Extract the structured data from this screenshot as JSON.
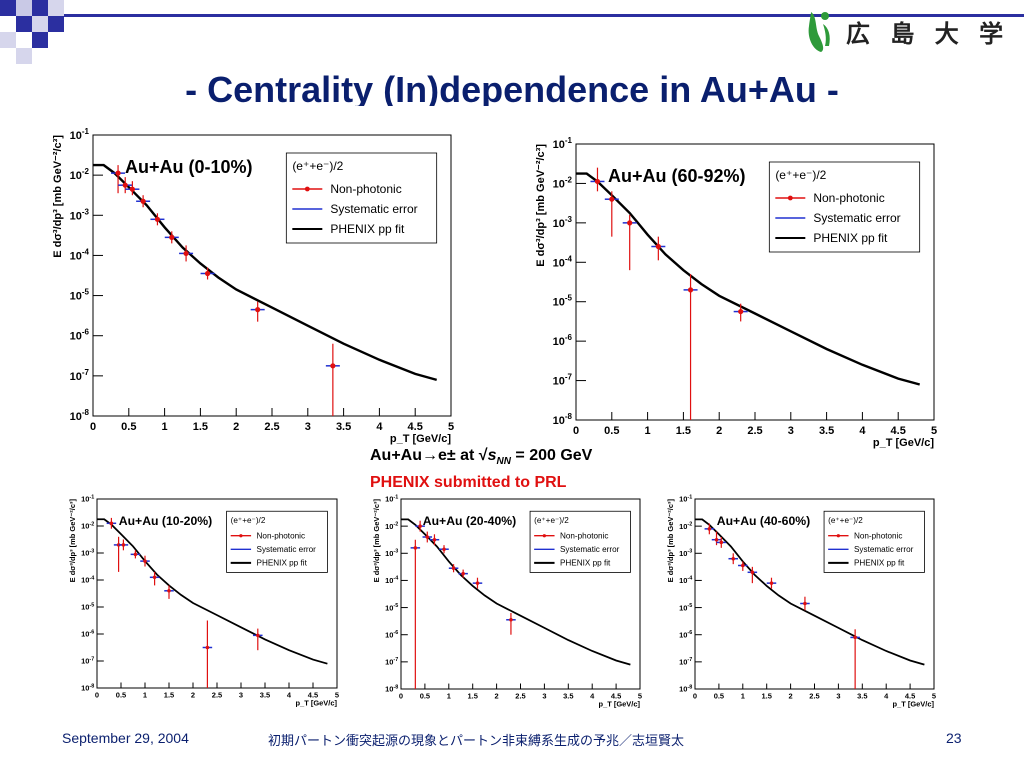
{
  "slide": {
    "title": "- Centrality (In)dependence in Au+Au -",
    "logo_text": "広 島 大 学",
    "center_line1_prefix": "Au+Au",
    "center_line1_arrow": "→",
    "center_line1_particle": "e±",
    "center_line1_at": " at √",
    "center_line1_s": "s",
    "center_line1_sub": "NN",
    "center_line1_suffix": " = 200 GeV",
    "center_line2": "PHENIX submitted to PRL",
    "footer_date": "September 29, 2004",
    "footer_center": "初期パートン衝突起源の現象とパートン非束縛系生成の予兆／志垣賢太",
    "footer_page": "23",
    "colors": {
      "title": "#0a1f6e",
      "data": "#e01010",
      "systematic": "#2030d0",
      "fit": "#000000",
      "submitted": "#e01010"
    }
  },
  "chart_data": [
    {
      "type": "scatter",
      "panel": "Au+Au (0-10%)",
      "title": "Au+Au (0-10%)",
      "xlabel": "p_T [GeV/c]",
      "ylabel": "E dσ³/dp³ [mb GeV⁻²/c³]",
      "xlim": [
        0,
        5
      ],
      "ylim_log10": [
        -8,
        -1
      ],
      "x_ticks": [
        "0",
        "0.5",
        "1",
        "1.5",
        "2",
        "2.5",
        "3",
        "3.5",
        "4",
        "4.5",
        "5"
      ],
      "y_ticks": [
        "10^-8",
        "10^-7",
        "10^-6",
        "10^-5",
        "10^-4",
        "10^-3",
        "10^-2",
        "10^-1"
      ],
      "legend": {
        "header": "(e⁺+e⁻)/2",
        "entries": [
          "Non-photonic",
          "Systematic error",
          "PHENIX pp fit"
        ],
        "placement": "top-right"
      },
      "fit": {
        "name": "PHENIX pp fit",
        "x": [
          0.0,
          0.15,
          0.3,
          0.5,
          0.75,
          1.0,
          1.25,
          1.5,
          1.75,
          2.0,
          2.5,
          3.0,
          3.5,
          4.0,
          4.5,
          4.8
        ],
        "log10_y": [
          -1.75,
          -1.75,
          -1.95,
          -2.3,
          -2.75,
          -3.3,
          -3.8,
          -4.2,
          -4.55,
          -4.85,
          -5.3,
          -5.75,
          -6.2,
          -6.6,
          -6.95,
          -7.1
        ]
      },
      "points": [
        {
          "x": 0.35,
          "log10_y": -1.95,
          "lo": -2.45,
          "hi": -1.75
        },
        {
          "x": 0.45,
          "log10_y": -2.25,
          "lo": -2.45,
          "hi": -2.05
        },
        {
          "x": 0.55,
          "log10_y": -2.35,
          "lo": -2.5,
          "hi": -2.15
        },
        {
          "x": 0.7,
          "log10_y": -2.65,
          "lo": -2.8,
          "hi": -2.5
        },
        {
          "x": 0.9,
          "log10_y": -3.1,
          "lo": -3.25,
          "hi": -2.95
        },
        {
          "x": 1.1,
          "log10_y": -3.55,
          "lo": -3.7,
          "hi": -3.4
        },
        {
          "x": 1.3,
          "log10_y": -3.95,
          "lo": -4.15,
          "hi": -3.75
        },
        {
          "x": 1.6,
          "log10_y": -4.45,
          "lo": -4.6,
          "hi": -4.3
        },
        {
          "x": 2.3,
          "log10_y": -5.35,
          "lo": -5.65,
          "hi": -5.15
        },
        {
          "x": 3.35,
          "log10_y": -6.75,
          "lo": -8.0,
          "hi": -6.2
        }
      ]
    },
    {
      "type": "scatter",
      "panel": "Au+Au (60-92%)",
      "title": "Au+Au (60-92%)",
      "xlabel": "p_T [GeV/c]",
      "ylabel": "E dσ³/dp³ [mb GeV⁻²/c³]",
      "xlim": [
        0,
        5
      ],
      "ylim_log10": [
        -8,
        -1
      ],
      "x_ticks": [
        "0",
        "0.5",
        "1",
        "1.5",
        "2",
        "2.5",
        "3",
        "3.5",
        "4",
        "4.5",
        "5"
      ],
      "y_ticks": [
        "10^-8",
        "10^-7",
        "10^-6",
        "10^-5",
        "10^-4",
        "10^-3",
        "10^-2",
        "10^-1"
      ],
      "legend": {
        "header": "(e⁺+e⁻)/2",
        "entries": [
          "Non-photonic",
          "Systematic error",
          "PHENIX pp fit"
        ],
        "placement": "top-right"
      },
      "fit": {
        "name": "PHENIX pp fit",
        "x": [
          0.0,
          0.15,
          0.3,
          0.5,
          0.75,
          1.0,
          1.25,
          1.5,
          1.75,
          2.0,
          2.5,
          3.0,
          3.5,
          4.0,
          4.5,
          4.8
        ],
        "log10_y": [
          -1.75,
          -1.75,
          -1.95,
          -2.3,
          -2.75,
          -3.3,
          -3.8,
          -4.2,
          -4.55,
          -4.85,
          -5.3,
          -5.75,
          -6.2,
          -6.6,
          -6.95,
          -7.1
        ]
      },
      "points": [
        {
          "x": 0.3,
          "log10_y": -1.95,
          "lo": -2.2,
          "hi": -1.6
        },
        {
          "x": 0.5,
          "log10_y": -2.4,
          "lo": -3.35,
          "hi": -2.2
        },
        {
          "x": 0.75,
          "log10_y": -3.0,
          "lo": -4.2,
          "hi": -2.8
        },
        {
          "x": 1.15,
          "log10_y": -3.6,
          "lo": -3.95,
          "hi": -3.35
        },
        {
          "x": 1.6,
          "log10_y": -4.7,
          "lo": -8.0,
          "hi": -4.3
        },
        {
          "x": 2.3,
          "log10_y": -5.25,
          "lo": -5.5,
          "hi": -5.05
        }
      ]
    },
    {
      "type": "scatter",
      "panel": "Au+Au (10-20%)",
      "title": "Au+Au (10-20%)",
      "xlabel": "p_T [GeV/c]",
      "ylabel": "E dσ³/dp³ [mb GeV⁻²/c³]",
      "xlim": [
        0,
        5
      ],
      "ylim_log10": [
        -8,
        -1
      ],
      "x_ticks": [
        "0",
        "0.5",
        "1",
        "1.5",
        "2",
        "2.5",
        "3",
        "3.5",
        "4",
        "4.5",
        "5"
      ],
      "y_ticks": [
        "10^-8",
        "10^-7",
        "10^-6",
        "10^-5",
        "10^-4",
        "10^-3",
        "10^-2",
        "10^-1"
      ],
      "legend": {
        "header": "(e⁺+e⁻)/2",
        "entries": [
          "Non-photonic",
          "Systematic error",
          "PHENIX pp fit"
        ],
        "placement": "top-right"
      },
      "fit": {
        "name": "PHENIX pp fit",
        "x": [
          0.0,
          0.15,
          0.3,
          0.5,
          0.75,
          1.0,
          1.25,
          1.5,
          1.75,
          2.0,
          2.5,
          3.0,
          3.5,
          4.0,
          4.5,
          4.8
        ],
        "log10_y": [
          -1.75,
          -1.75,
          -1.95,
          -2.3,
          -2.75,
          -3.3,
          -3.8,
          -4.2,
          -4.55,
          -4.85,
          -5.3,
          -5.75,
          -6.2,
          -6.6,
          -6.95,
          -7.1
        ]
      },
      "points": [
        {
          "x": 0.3,
          "log10_y": -1.9,
          "lo": -2.1,
          "hi": -1.7
        },
        {
          "x": 0.45,
          "log10_y": -2.7,
          "lo": -3.7,
          "hi": -2.4
        },
        {
          "x": 0.55,
          "log10_y": -2.7,
          "lo": -2.9,
          "hi": -2.5
        },
        {
          "x": 0.8,
          "log10_y": -3.05,
          "lo": -3.2,
          "hi": -2.9
        },
        {
          "x": 1.0,
          "log10_y": -3.3,
          "lo": -3.5,
          "hi": -3.1
        },
        {
          "x": 1.2,
          "log10_y": -3.9,
          "lo": -4.2,
          "hi": -3.7
        },
        {
          "x": 1.5,
          "log10_y": -4.4,
          "lo": -4.7,
          "hi": -4.2
        },
        {
          "x": 2.3,
          "log10_y": -6.5,
          "lo": -8.0,
          "hi": -5.5
        },
        {
          "x": 3.35,
          "log10_y": -6.05,
          "lo": -6.6,
          "hi": -5.8
        }
      ]
    },
    {
      "type": "scatter",
      "panel": "Au+Au (20-40%)",
      "title": "Au+Au (20-40%)",
      "xlabel": "p_T [GeV/c]",
      "ylabel": "E dσ³/dp³ [mb GeV⁻²/c³]",
      "xlim": [
        0,
        5
      ],
      "ylim_log10": [
        -8,
        -1
      ],
      "x_ticks": [
        "0",
        "0.5",
        "1",
        "1.5",
        "2",
        "2.5",
        "3",
        "3.5",
        "4",
        "4.5",
        "5"
      ],
      "y_ticks": [
        "10^-8",
        "10^-7",
        "10^-6",
        "10^-5",
        "10^-4",
        "10^-3",
        "10^-2",
        "10^-1"
      ],
      "legend": {
        "header": "(e⁺+e⁻)/2",
        "entries": [
          "Non-photonic",
          "Systematic error",
          "PHENIX pp fit"
        ],
        "placement": "top-right"
      },
      "fit": {
        "name": "PHENIX pp fit",
        "x": [
          0.0,
          0.15,
          0.3,
          0.5,
          0.75,
          1.0,
          1.25,
          1.5,
          1.75,
          2.0,
          2.5,
          3.0,
          3.5,
          4.0,
          4.5,
          4.8
        ],
        "log10_y": [
          -1.75,
          -1.75,
          -1.95,
          -2.3,
          -2.75,
          -3.3,
          -3.8,
          -4.2,
          -4.55,
          -4.85,
          -5.3,
          -5.75,
          -6.2,
          -6.6,
          -6.95,
          -7.1
        ]
      },
      "points": [
        {
          "x": 0.3,
          "log10_y": -2.8,
          "lo": -8.0,
          "hi": -2.5
        },
        {
          "x": 0.4,
          "log10_y": -2.0,
          "lo": -2.2,
          "hi": -1.8
        },
        {
          "x": 0.55,
          "log10_y": -2.4,
          "lo": -2.6,
          "hi": -2.2
        },
        {
          "x": 0.7,
          "log10_y": -2.5,
          "lo": -2.7,
          "hi": -2.3
        },
        {
          "x": 0.9,
          "log10_y": -2.85,
          "lo": -3.0,
          "hi": -2.7
        },
        {
          "x": 1.1,
          "log10_y": -3.55,
          "lo": -3.7,
          "hi": -3.4
        },
        {
          "x": 1.3,
          "log10_y": -3.75,
          "lo": -3.9,
          "hi": -3.6
        },
        {
          "x": 1.6,
          "log10_y": -4.1,
          "lo": -4.3,
          "hi": -3.9
        },
        {
          "x": 2.3,
          "log10_y": -5.45,
          "lo": -6.0,
          "hi": -5.2
        }
      ]
    },
    {
      "type": "scatter",
      "panel": "Au+Au (40-60%)",
      "title": "Au+Au (40-60%)",
      "xlabel": "p_T [GeV/c]",
      "ylabel": "E dσ³/dp³ [mb GeV⁻²/c³]",
      "xlim": [
        0,
        5
      ],
      "ylim_log10": [
        -8,
        -1
      ],
      "x_ticks": [
        "0",
        "0.5",
        "1",
        "1.5",
        "2",
        "2.5",
        "3",
        "3.5",
        "4",
        "4.5",
        "5"
      ],
      "y_ticks": [
        "10^-8",
        "10^-7",
        "10^-6",
        "10^-5",
        "10^-4",
        "10^-3",
        "10^-2",
        "10^-1"
      ],
      "legend": {
        "header": "(e⁺+e⁻)/2",
        "entries": [
          "Non-photonic",
          "Systematic error",
          "PHENIX pp fit"
        ],
        "placement": "top-right"
      },
      "fit": {
        "name": "PHENIX pp fit",
        "x": [
          0.0,
          0.15,
          0.3,
          0.5,
          0.75,
          1.0,
          1.25,
          1.5,
          1.75,
          2.0,
          2.5,
          3.0,
          3.5,
          4.0,
          4.5,
          4.8
        ],
        "log10_y": [
          -1.75,
          -1.75,
          -1.95,
          -2.3,
          -2.75,
          -3.3,
          -3.8,
          -4.2,
          -4.55,
          -4.85,
          -5.3,
          -5.75,
          -6.2,
          -6.6,
          -6.95,
          -7.1
        ]
      },
      "points": [
        {
          "x": 0.3,
          "log10_y": -2.1,
          "lo": -2.3,
          "hi": -1.9
        },
        {
          "x": 0.45,
          "log10_y": -2.5,
          "lo": -2.7,
          "hi": -2.2
        },
        {
          "x": 0.55,
          "log10_y": -2.6,
          "lo": -2.8,
          "hi": -2.4
        },
        {
          "x": 0.8,
          "log10_y": -3.2,
          "lo": -3.4,
          "hi": -3.0
        },
        {
          "x": 1.0,
          "log10_y": -3.45,
          "lo": -3.65,
          "hi": -3.3
        },
        {
          "x": 1.2,
          "log10_y": -3.7,
          "lo": -4.1,
          "hi": -3.5
        },
        {
          "x": 1.6,
          "log10_y": -4.1,
          "lo": -4.3,
          "hi": -3.9
        },
        {
          "x": 2.3,
          "log10_y": -4.85,
          "lo": -5.1,
          "hi": -4.6
        },
        {
          "x": 3.35,
          "log10_y": -6.1,
          "lo": -8.0,
          "hi": -5.8
        }
      ]
    }
  ]
}
